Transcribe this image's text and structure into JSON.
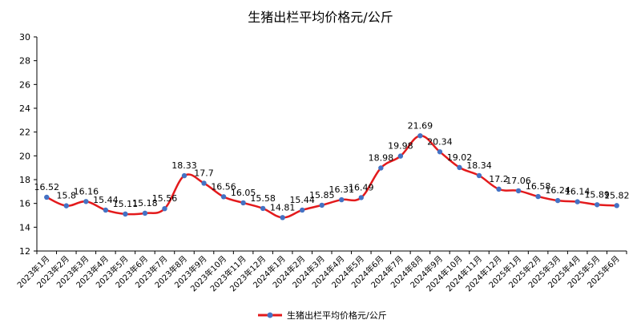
{
  "chart_data": {
    "type": "line",
    "title": "生猪出栏平均价格元/公斤",
    "categories": [
      "2023年1月",
      "2023年2月",
      "2023年3月",
      "2023年4月",
      "2023年5月",
      "2023年6月",
      "2023年7月",
      "2023年8月",
      "2023年9月",
      "2023年10月",
      "2023年11月",
      "2023年12月",
      "2024年1月",
      "2024年2月",
      "2024年3月",
      "2024年4月",
      "2024年5月",
      "2024年6月",
      "2024年7月",
      "2024年8月",
      "2024年9月",
      "2024年10月",
      "2024年11月",
      "2024年12月",
      "2025年1月",
      "2025年2月",
      "2025年3月",
      "2025年4月",
      "2025年5月",
      "2025年6月"
    ],
    "series": [
      {
        "name": "生猪出栏平均价格元/公斤",
        "values": [
          16.52,
          15.8,
          16.16,
          15.44,
          15.11,
          15.18,
          15.56,
          18.33,
          17.7,
          16.56,
          16.05,
          15.58,
          14.81,
          15.44,
          15.85,
          16.31,
          16.49,
          18.98,
          19.98,
          21.69,
          20.34,
          19.02,
          18.34,
          17.2,
          17.06,
          16.58,
          16.24,
          16.14,
          15.89,
          15.82
        ],
        "labels": [
          "16.52",
          "15.8",
          "16.16",
          "15.44",
          "15.11",
          "15.18",
          "15.56",
          "18.33",
          "17.7",
          "16.56",
          "16.05",
          "15.58",
          "14.81",
          "15.44",
          "15.85",
          "16.31",
          "16.49",
          "18.98",
          "19.98",
          "21.69",
          "20.34",
          "19.02",
          "18.34",
          "17.2",
          "17.06",
          "16.58",
          "16.24",
          "16.14",
          "15.89",
          "15.82"
        ],
        "color": "#e31a1c",
        "marker_color": "#4472c4"
      }
    ],
    "ylim": [
      12,
      30
    ],
    "yticks": [
      12,
      14,
      16,
      18,
      20,
      22,
      24,
      26,
      28,
      30
    ],
    "ytick_labels": [
      "12",
      "14",
      "16",
      "18",
      "20",
      "22",
      "24",
      "26",
      "28",
      "30"
    ],
    "grid": false,
    "legend_position": "bottom",
    "xlabel": "",
    "ylabel": ""
  }
}
